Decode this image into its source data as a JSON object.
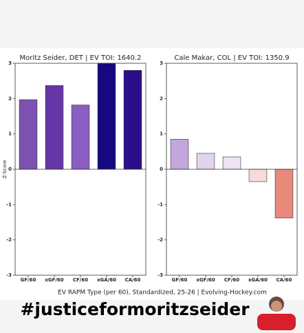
{
  "chart_data": [
    {
      "type": "bar",
      "title": "Moritz Seider, DET  |  EV TOI: 1640.2",
      "ylabel": "Z-Score",
      "categories": [
        "GF/60",
        "xGF/60",
        "CF/60",
        "xGA/60",
        "CA/60"
      ],
      "values": [
        1.97,
        2.37,
        1.82,
        3.0,
        2.8
      ],
      "colors": [
        "#7b52b0",
        "#6636a8",
        "#8a5ec2",
        "#16087e",
        "#2c0e8c"
      ],
      "ylim": [
        -3,
        3
      ],
      "yticks": [
        -3,
        -2,
        -1,
        0,
        1,
        2,
        3
      ],
      "grid": false
    },
    {
      "type": "bar",
      "title": "Cale Makar, COL  |  EV TOI: 1350.9",
      "categories": [
        "GF/60",
        "xGF/60",
        "CF/60",
        "xGA/60",
        "CA/60"
      ],
      "values": [
        0.85,
        0.45,
        0.35,
        -0.35,
        -1.38
      ],
      "colors": [
        "#c3a7dc",
        "#e0d3ee",
        "#ece3f4",
        "#f8dbd8",
        "#e8897b"
      ],
      "ylim": [
        -3,
        3
      ],
      "yticks": [
        -3,
        -2,
        -1,
        0,
        1,
        2,
        3
      ],
      "grid": false
    }
  ],
  "footer": {
    "xlabel": "EV RAPM Type (per 60), Standardized, 25-26   |   Evolving-Hockey.com",
    "hashtag": "#justiceformoritzseider"
  }
}
